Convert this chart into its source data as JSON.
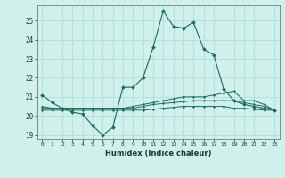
{
  "xlabel": "Humidex (Indice chaleur)",
  "x_ticks": [
    0,
    1,
    2,
    3,
    4,
    5,
    6,
    7,
    8,
    9,
    10,
    11,
    12,
    13,
    14,
    15,
    16,
    17,
    18,
    19,
    20,
    21,
    22,
    23
  ],
  "xlim": [
    -0.5,
    23.5
  ],
  "ylim": [
    18.8,
    25.8
  ],
  "y_ticks": [
    19,
    20,
    21,
    22,
    23,
    24,
    25
  ],
  "bg_color": "#cff0eb",
  "grid_color": "#aaddda",
  "line_color": "#1a6b5e",
  "line1_x": [
    0,
    1,
    2,
    3,
    4,
    5,
    6,
    7,
    8,
    9,
    10,
    11,
    12,
    13,
    14,
    15,
    16,
    17,
    18,
    19,
    20,
    21,
    22,
    23
  ],
  "line1_y": [
    21.1,
    20.7,
    20.4,
    20.2,
    20.1,
    19.5,
    19.0,
    19.4,
    21.5,
    21.5,
    22.0,
    23.6,
    25.5,
    24.7,
    24.6,
    24.9,
    23.5,
    23.2,
    21.4,
    20.8,
    20.6,
    20.5,
    20.4,
    20.3
  ],
  "line2_x": [
    0,
    1,
    2,
    3,
    4,
    5,
    6,
    7,
    8,
    9,
    10,
    11,
    12,
    13,
    14,
    15,
    16,
    17,
    18,
    19,
    20,
    21,
    22,
    23
  ],
  "line2_y": [
    20.5,
    20.4,
    20.4,
    20.4,
    20.4,
    20.4,
    20.4,
    20.4,
    20.4,
    20.5,
    20.6,
    20.7,
    20.8,
    20.9,
    21.0,
    21.0,
    21.0,
    21.1,
    21.2,
    21.3,
    20.8,
    20.8,
    20.6,
    20.3
  ],
  "line3_x": [
    0,
    1,
    2,
    3,
    4,
    5,
    6,
    7,
    8,
    9,
    10,
    11,
    12,
    13,
    14,
    15,
    16,
    17,
    18,
    19,
    20,
    21,
    22,
    23
  ],
  "line3_y": [
    20.4,
    20.4,
    20.4,
    20.4,
    20.4,
    20.4,
    20.4,
    20.4,
    20.4,
    20.4,
    20.5,
    20.6,
    20.65,
    20.7,
    20.75,
    20.8,
    20.8,
    20.8,
    20.8,
    20.8,
    20.7,
    20.6,
    20.5,
    20.3
  ],
  "line4_x": [
    0,
    1,
    2,
    3,
    4,
    5,
    6,
    7,
    8,
    9,
    10,
    11,
    12,
    13,
    14,
    15,
    16,
    17,
    18,
    19,
    20,
    21,
    22,
    23
  ],
  "line4_y": [
    20.3,
    20.3,
    20.3,
    20.3,
    20.3,
    20.3,
    20.3,
    20.3,
    20.3,
    20.3,
    20.3,
    20.35,
    20.4,
    20.45,
    20.5,
    20.5,
    20.5,
    20.5,
    20.5,
    20.4,
    20.4,
    20.35,
    20.3,
    20.3
  ]
}
